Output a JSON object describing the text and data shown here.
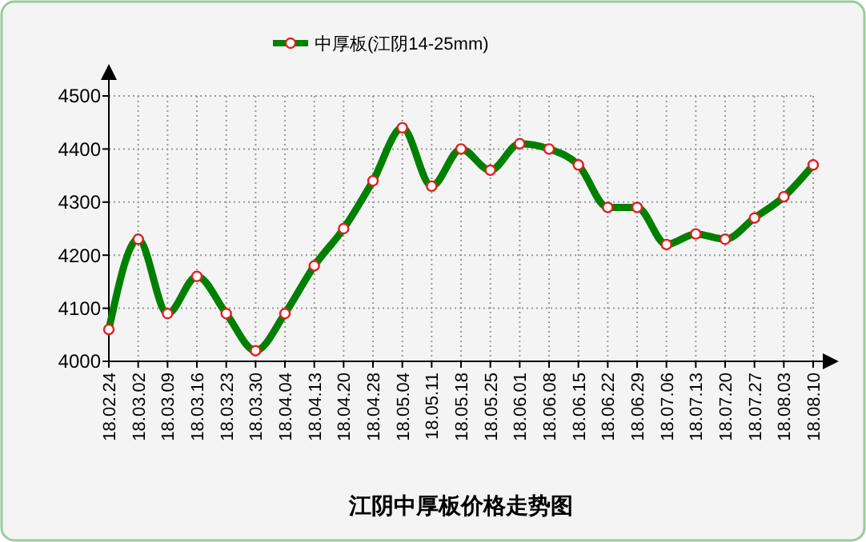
{
  "chart_data": {
    "type": "line",
    "title": "江阴中厚板价格走势图",
    "categories": [
      "18.02.24",
      "18.03.02",
      "18.03.09",
      "18.03.16",
      "18.03.23",
      "18.03.30",
      "18.04.04",
      "18.04.13",
      "18.04.20",
      "18.04.28",
      "18.05.04",
      "18.05.11",
      "18.05.18",
      "18.05.25",
      "18.06.01",
      "18.06.08",
      "18.06.15",
      "18.06.22",
      "18.06.29",
      "18.07.06",
      "18.07.13",
      "18.07.20",
      "18.07.27",
      "18.08.03",
      "18.08.10"
    ],
    "series": [
      {
        "name": "中厚板(江阴14-25mm)",
        "color": "#008000",
        "values": [
          4060,
          4230,
          4090,
          4160,
          4090,
          4020,
          4090,
          4180,
          4250,
          4340,
          4440,
          4330,
          4400,
          4360,
          4410,
          4400,
          4370,
          4290,
          4290,
          4220,
          4240,
          4230,
          4270,
          4310,
          4370
        ]
      }
    ],
    "ylim": [
      4000,
      4500
    ],
    "yticks": [
      4000,
      4100,
      4200,
      4300,
      4400,
      4500
    ],
    "grid": true,
    "legend": "top",
    "marker": "circle",
    "line_style": "solid"
  }
}
